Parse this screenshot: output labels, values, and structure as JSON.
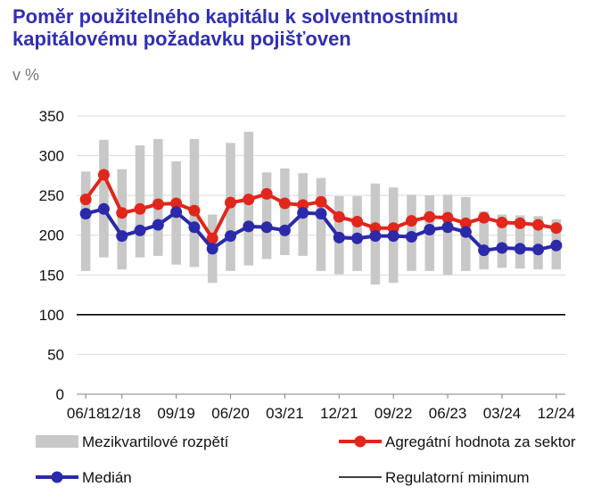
{
  "chart_data": {
    "type": "line",
    "title": [
      "Poměr použitelného kapitálu k solventnostnímu",
      "kapitálovému požadavku pojišťoven"
    ],
    "unit": "v %",
    "ylim": [
      0,
      350
    ],
    "yticks": [
      0,
      50,
      100,
      150,
      200,
      250,
      300,
      350
    ],
    "xticks": [
      "06/18",
      "12/18",
      "09/19",
      "06/20",
      "03/21",
      "12/21",
      "09/22",
      "06/23",
      "03/24",
      "12/24"
    ],
    "periods": [
      "06/18",
      "09/18",
      "12/18",
      "03/19",
      "06/19",
      "09/19",
      "12/19",
      "03/20",
      "06/20",
      "09/20",
      "12/20",
      "03/21",
      "06/21",
      "09/21",
      "12/21",
      "03/22",
      "06/22",
      "09/22",
      "12/22",
      "03/23",
      "06/23",
      "09/23",
      "12/23",
      "03/24",
      "06/24",
      "09/24",
      "12/24"
    ],
    "grid": "horizontal",
    "series": [
      {
        "name": "Mezikvartilové rozpětí",
        "kind": "range",
        "color": "#C8C8C8",
        "low": [
          155,
          172,
          157,
          172,
          174,
          163,
          160,
          140,
          155,
          162,
          170,
          175,
          174,
          155,
          151,
          155,
          138,
          140,
          155,
          155,
          150,
          155,
          157,
          159,
          158,
          157,
          157
        ],
        "high": [
          280,
          320,
          283,
          313,
          321,
          293,
          321,
          226,
          316,
          330,
          279,
          284,
          278,
          272,
          249,
          249,
          265,
          260,
          251,
          250,
          251,
          248,
          230,
          226,
          225,
          224,
          220
        ]
      },
      {
        "name": "Agregátní hodnota za sektor",
        "kind": "line",
        "color": "#E1261C",
        "values": [
          245,
          276,
          228,
          233,
          239,
          240,
          231,
          196,
          241,
          245,
          252,
          240,
          238,
          242,
          223,
          217,
          209,
          209,
          218,
          223,
          222,
          215,
          222,
          216,
          215,
          213,
          209
        ]
      },
      {
        "name": "Medián",
        "kind": "line",
        "color": "#2A2AAA",
        "values": [
          227,
          233,
          199,
          206,
          213,
          229,
          210,
          183,
          199,
          211,
          210,
          206,
          228,
          227,
          197,
          196,
          199,
          199,
          198,
          207,
          210,
          204,
          181,
          184,
          183,
          182,
          187
        ]
      },
      {
        "name": "Regulatorní minimum",
        "kind": "hline",
        "color": "#000000",
        "value": 100
      }
    ],
    "legend": [
      "Mezikvartilové rozpětí",
      "Agregátní hodnota za sektor",
      "Medián",
      "Regulatorní minimum"
    ]
  }
}
